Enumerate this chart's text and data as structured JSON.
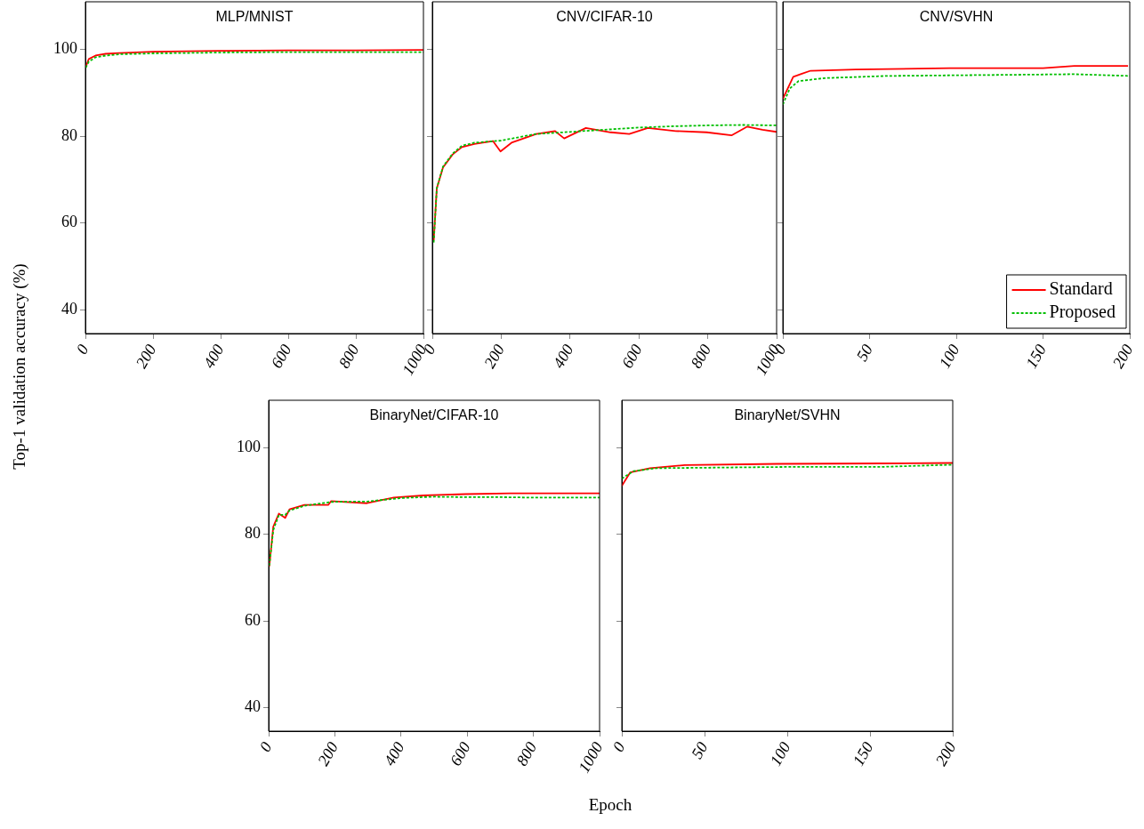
{
  "chart_data": [
    {
      "type": "line",
      "title": "MLP/MNIST",
      "ylabel": "Top-1 validation accuracy (%)",
      "xlim": [
        0,
        1000
      ],
      "xticks": [
        0,
        200,
        400,
        600,
        800,
        1000
      ],
      "ylim": [
        34.5,
        111
      ],
      "yticks": [
        40,
        60,
        80,
        100
      ],
      "grid": false,
      "legend": false,
      "series": [
        {
          "color": "#ff0000",
          "line_style": "solid",
          "x": [
            1,
            10,
            30,
            60,
            100,
            200,
            400,
            600,
            800,
            1000
          ],
          "values": [
            96,
            97.8,
            98.6,
            99,
            99.2,
            99.5,
            99.7,
            99.8,
            99.8,
            99.9
          ]
        },
        {
          "color": "#00bf00",
          "line_style": "dashed",
          "x": [
            1,
            10,
            30,
            60,
            100,
            200,
            400,
            600,
            800,
            1000
          ],
          "values": [
            95.8,
            97.2,
            98.2,
            98.6,
            98.9,
            99.1,
            99.3,
            99.4,
            99.4,
            99.4
          ]
        }
      ]
    },
    {
      "type": "line",
      "title": "CNV/CIFAR-10",
      "xlim": [
        0,
        1000
      ],
      "xticks": [
        0,
        200,
        400,
        600,
        800,
        1000
      ],
      "ylim": [
        34.5,
        111
      ],
      "yticks": [
        40,
        60,
        80,
        100
      ],
      "tick_labels": "x",
      "grid": false,
      "legend": false,
      "series": [
        {
          "color": "#ff0000",
          "line_style": "solid",
          "x": [
            4,
            13,
            31,
            59,
            86,
            122,
            176,
            198,
            230,
            302,
            356,
            383,
            446,
            518,
            572,
            626,
            707,
            797,
            869,
            914,
            959,
            1000
          ],
          "values": [
            56,
            68,
            72.8,
            75.8,
            77.5,
            78.2,
            78.9,
            76.5,
            78.5,
            80.5,
            81.2,
            79.5,
            81.9,
            80.9,
            80.5,
            81.9,
            81.2,
            80.9,
            80.2,
            82.2,
            81.5,
            81
          ]
        },
        {
          "color": "#00bf00",
          "line_style": "dashed",
          "x": [
            4,
            13,
            31,
            59,
            86,
            122,
            200,
            300,
            400,
            500,
            600,
            700,
            800,
            900,
            1000
          ],
          "values": [
            55.5,
            68,
            73,
            76,
            77.8,
            78.5,
            79,
            80.5,
            81,
            81.5,
            82,
            82.3,
            82.5,
            82.6,
            82.5
          ]
        }
      ]
    },
    {
      "type": "line",
      "title": "CNV/SVHN",
      "xlim": [
        0,
        200
      ],
      "xticks": [
        0,
        50,
        100,
        150,
        200
      ],
      "ylim": [
        34.5,
        111
      ],
      "yticks": [
        40,
        60,
        80,
        100
      ],
      "tick_labels": "x",
      "grid": false,
      "legend": "bottom right",
      "series": [
        {
          "name": "Standard",
          "color": "#ff0000",
          "line_style": "solid",
          "x": [
            0,
            6,
            11,
            16,
            42,
            96,
            150,
            168,
            199
          ],
          "values": [
            88.6,
            93.7,
            94.4,
            95.1,
            95.4,
            95.7,
            95.7,
            96.2,
            96.2
          ]
        },
        {
          "name": "Proposed",
          "color": "#00bf00",
          "line_style": "dashed",
          "x": [
            0,
            4,
            9,
            24,
            60,
            114,
            168,
            200
          ],
          "values": [
            87.3,
            91,
            92.7,
            93.4,
            93.9,
            94.1,
            94.3,
            93.9
          ]
        }
      ]
    },
    {
      "type": "line",
      "title": "BinaryNet/CIFAR-10",
      "xlabel": "Epoch",
      "xlim": [
        0,
        1000
      ],
      "xticks": [
        0,
        200,
        400,
        600,
        800,
        1000
      ],
      "ylim": [
        34.5,
        111
      ],
      "yticks": [
        40,
        60,
        80,
        100
      ],
      "grid": false,
      "legend": false,
      "series": [
        {
          "color": "#ff0000",
          "line_style": "solid",
          "x": [
            2,
            14,
            31,
            50,
            63,
            108,
            180,
            189,
            297,
            378,
            468,
            595,
            730,
            865,
            1000
          ],
          "values": [
            72.6,
            81.8,
            84.8,
            83.8,
            85.8,
            86.8,
            86.8,
            87.7,
            87.2,
            88.5,
            89,
            89.3,
            89.5,
            89.5,
            89.5
          ]
        },
        {
          "color": "#00bf00",
          "line_style": "dashed",
          "x": [
            2,
            14,
            31,
            50,
            63,
            108,
            189,
            297,
            400,
            500,
            600,
            700,
            800,
            900,
            1000
          ],
          "values": [
            72.8,
            81,
            84.5,
            84.5,
            85.5,
            86.6,
            87.5,
            87.6,
            88.4,
            88.7,
            88.6,
            88.6,
            88.5,
            88.5,
            88.5
          ]
        }
      ]
    },
    {
      "type": "line",
      "title": "BinaryNet/SVHN",
      "xlim": [
        0,
        200
      ],
      "xticks": [
        0,
        50,
        100,
        150,
        200
      ],
      "ylim": [
        34.5,
        111
      ],
      "yticks": [
        40,
        60,
        80,
        100
      ],
      "tick_labels": "x",
      "grid": false,
      "legend": false,
      "series": [
        {
          "color": "#ff0000",
          "line_style": "solid",
          "x": [
            0,
            5,
            17,
            38,
            94,
            157,
            200
          ],
          "values": [
            91.2,
            94.3,
            95.3,
            96,
            96.3,
            96.4,
            96.5
          ]
        },
        {
          "color": "#00bf00",
          "line_style": "dashed",
          "x": [
            0,
            7,
            21,
            48,
            102,
            157,
            200
          ],
          "values": [
            92.9,
            94.6,
            95.3,
            95.4,
            95.6,
            95.6,
            96.1
          ]
        }
      ]
    }
  ]
}
